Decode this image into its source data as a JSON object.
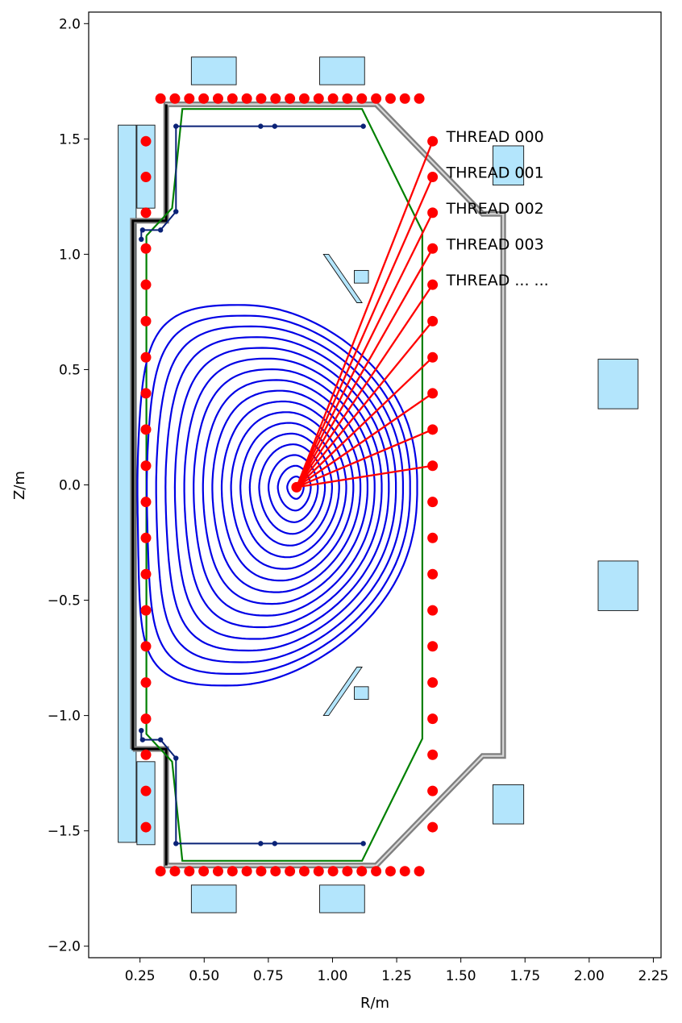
{
  "chart_data": {
    "type": "scatter",
    "title": "",
    "xlabel": "R/m",
    "ylabel": "Z/m",
    "xlim": [
      0.05,
      2.28
    ],
    "ylim": [
      -2.05,
      2.05
    ],
    "xticks": [
      0.25,
      0.5,
      0.75,
      1.0,
      1.25,
      1.5,
      1.75,
      2.0,
      2.25
    ],
    "xtick_labels": [
      "0.25",
      "0.50",
      "0.75",
      "1.00",
      "1.25",
      "1.50",
      "1.75",
      "2.00",
      "2.25"
    ],
    "yticks": [
      2.0,
      1.5,
      1.0,
      0.5,
      0.0,
      -0.5,
      -1.0,
      -1.5,
      -2.0
    ],
    "ytick_labels": [
      "2.0",
      "1.5",
      "1.0",
      "0.5",
      "0.0",
      "−0.5",
      "−1.0",
      "−1.5",
      "−2.0"
    ],
    "grid": false,
    "colors": {
      "flux_surfaces": "#0000e6",
      "limiter": "#008000",
      "vessel": "#808080",
      "vessel_core": "#d9d9d9",
      "inner_structure": "#000000",
      "divertor": "#0a2277",
      "coils_fill": "#b3e5fc",
      "coils_edge": "#111111",
      "sensors": "#ff0000",
      "lines_of_sight": "#ff0000"
    },
    "magnetic_axis": {
      "R": 0.86,
      "Z": -0.01
    },
    "sightline_labels": [
      "THREAD 000",
      "THREAD 001",
      "THREAD 002",
      "THREAD 003",
      "THREAD ... ..."
    ],
    "sightline_endpoints": [
      [
        1.39,
        1.49
      ],
      [
        1.39,
        1.335
      ],
      [
        1.39,
        1.18
      ],
      [
        1.39,
        1.025
      ],
      [
        1.39,
        0.868
      ],
      [
        1.39,
        0.71
      ],
      [
        1.39,
        0.553
      ],
      [
        1.39,
        0.397
      ],
      [
        1.39,
        0.24
      ],
      [
        1.39,
        0.083
      ]
    ],
    "sensors": {
      "outer_column": {
        "R": 1.39,
        "Z": [
          1.49,
          1.335,
          1.18,
          1.025,
          0.868,
          0.71,
          0.553,
          0.397,
          0.24,
          0.083,
          -0.074,
          -0.23,
          -0.387,
          -0.544,
          -0.7,
          -0.857,
          -1.014,
          -1.17,
          -1.327,
          -1.484
        ]
      },
      "inner_column": {
        "R": 0.273,
        "Z": [
          1.49,
          1.335,
          1.18,
          1.025,
          0.868,
          0.71,
          0.553,
          0.397,
          0.24,
          0.083,
          -0.074,
          -0.23,
          -0.387,
          -0.544,
          -0.7,
          -0.857,
          -1.014,
          -1.17,
          -1.327,
          -1.484
        ]
      },
      "top_row": {
        "Z": 1.675,
        "R": [
          0.33,
          0.386,
          0.442,
          0.498,
          0.554,
          0.61,
          0.666,
          0.722,
          0.778,
          0.834,
          0.89,
          0.946,
          1.002,
          1.058,
          1.114,
          1.17,
          1.226,
          1.282,
          1.338
        ]
      },
      "bottom_row": {
        "Z": -1.675,
        "R": [
          0.33,
          0.386,
          0.442,
          0.498,
          0.554,
          0.61,
          0.666,
          0.722,
          0.778,
          0.834,
          0.89,
          0.946,
          1.002,
          1.058,
          1.114,
          1.17,
          1.226,
          1.282,
          1.338
        ]
      }
    },
    "coils": [
      [
        0.165,
        -1.55,
        0.07,
        3.11
      ],
      [
        0.238,
        1.2,
        0.07,
        0.36
      ],
      [
        0.238,
        -1.56,
        0.07,
        0.36
      ],
      [
        0.45,
        1.735,
        0.175,
        0.12
      ],
      [
        0.95,
        1.735,
        0.175,
        0.12
      ],
      [
        0.45,
        -1.855,
        0.175,
        0.12
      ],
      [
        0.95,
        -1.855,
        0.175,
        0.12
      ],
      [
        1.625,
        1.3,
        0.12,
        0.17
      ],
      [
        1.625,
        -1.47,
        0.12,
        0.17
      ],
      [
        2.035,
        0.33,
        0.155,
        0.215
      ],
      [
        2.035,
        -0.545,
        0.155,
        0.215
      ],
      [
        1.085,
        0.875,
        0.055,
        0.055
      ],
      [
        1.085,
        -0.93,
        0.055,
        0.055
      ]
    ],
    "baffles": [
      [
        [
          0.965,
          1.0
        ],
        [
          0.985,
          1.0
        ],
        [
          1.115,
          0.79
        ],
        [
          1.095,
          0.79
        ]
      ],
      [
        [
          0.965,
          -1.0
        ],
        [
          0.985,
          -1.0
        ],
        [
          1.115,
          -0.79
        ],
        [
          1.095,
          -0.79
        ]
      ]
    ],
    "limiter": [
      [
        0.275,
        1.08
      ],
      [
        0.375,
        1.2
      ],
      [
        0.415,
        1.63
      ],
      [
        1.115,
        1.63
      ],
      [
        1.35,
        1.1
      ],
      [
        1.35,
        -1.1
      ],
      [
        1.115,
        -1.63
      ],
      [
        0.415,
        -1.63
      ],
      [
        0.375,
        -1.2
      ],
      [
        0.275,
        -1.08
      ],
      [
        0.275,
        1.08
      ]
    ],
    "vessel": [
      [
        0.222,
        -1.145
      ],
      [
        0.222,
        1.145
      ],
      [
        0.352,
        1.145
      ],
      [
        0.352,
        1.65
      ],
      [
        1.17,
        1.65
      ],
      [
        1.585,
        1.175
      ],
      [
        1.665,
        1.175
      ],
      [
        1.665,
        -1.175
      ],
      [
        1.585,
        -1.175
      ],
      [
        1.17,
        -1.65
      ],
      [
        0.352,
        -1.65
      ],
      [
        0.352,
        -1.145
      ],
      [
        0.222,
        -1.145
      ]
    ],
    "divertor_upper": [
      [
        0.255,
        1.065
      ],
      [
        0.255,
        1.105
      ],
      [
        0.33,
        1.105
      ],
      [
        0.39,
        1.185
      ],
      [
        0.39,
        1.555
      ],
      [
        0.72,
        1.555
      ],
      [
        0.775,
        1.555
      ],
      [
        1.12,
        1.555
      ]
    ],
    "divertor_upper_points": [
      [
        0.255,
        1.065
      ],
      [
        0.26,
        1.105
      ],
      [
        0.33,
        1.105
      ],
      [
        0.39,
        1.185
      ],
      [
        0.39,
        1.555
      ],
      [
        0.72,
        1.555
      ],
      [
        0.775,
        1.555
      ],
      [
        1.12,
        1.555
      ]
    ],
    "divertor_lower": [
      [
        0.255,
        -1.065
      ],
      [
        0.255,
        -1.105
      ],
      [
        0.33,
        -1.105
      ],
      [
        0.39,
        -1.185
      ],
      [
        0.39,
        -1.555
      ],
      [
        0.72,
        -1.555
      ],
      [
        0.775,
        -1.555
      ],
      [
        1.12,
        -1.555
      ]
    ],
    "divertor_lower_points": [
      [
        0.255,
        -1.065
      ],
      [
        0.26,
        -1.105
      ],
      [
        0.33,
        -1.105
      ],
      [
        0.39,
        -1.185
      ],
      [
        0.39,
        -1.555
      ],
      [
        0.72,
        -1.555
      ],
      [
        0.775,
        -1.555
      ],
      [
        1.12,
        -1.555
      ]
    ],
    "flux_surfaces": {
      "axis": [
        0.86,
        -0.01
      ],
      "count": 17,
      "boundary_inner_R": 0.24,
      "boundary_outer_R": 1.33,
      "boundary_top": [
        0.62,
        0.78
      ],
      "boundary_bottom": [
        0.57,
        -0.87
      ]
    }
  }
}
